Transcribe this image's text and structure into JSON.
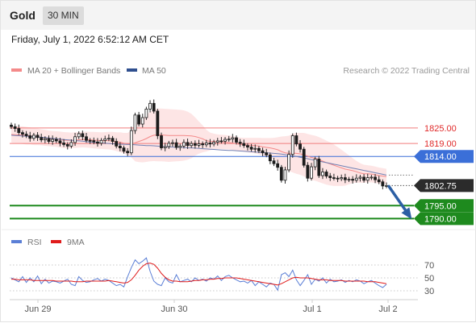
{
  "header": {
    "title": "Gold",
    "timeframe": "30 MIN"
  },
  "date": "Friday, July 1, 2022 6:52:12 AM CET",
  "legend": {
    "ma20": {
      "label": "MA 20 + Bollinger Bands",
      "color": "#f48a8a"
    },
    "ma50": {
      "label": "MA 50",
      "color": "#2f4f8f"
    },
    "credit": "Research © 2022 Trading Central"
  },
  "rsi_legend": {
    "rsi": {
      "label": "RSI",
      "color": "#5b7fd6"
    },
    "ma9": {
      "label": "9MA",
      "color": "#e01b1b"
    }
  },
  "chart_data": [
    {
      "type": "candlestick",
      "y_axis": "price",
      "ylim": [
        1787,
        1843
      ],
      "x_labels": [
        "Jun 29",
        "Jun 30",
        "Jul 1",
        "Jul 2"
      ],
      "current_price": "1802.75",
      "levels": [
        {
          "label": "1825.00",
          "value": 1825.0,
          "kind": "resistance",
          "color": "#f07c7c"
        },
        {
          "label": "1819.00",
          "value": 1819.0,
          "kind": "resistance",
          "color": "#f07c7c"
        },
        {
          "label": "1814.00",
          "value": 1814.0,
          "kind": "pivot",
          "color": "#3b6fd8"
        },
        {
          "label": "1795.00",
          "value": 1795.0,
          "kind": "support",
          "color": "#1e8a1e"
        },
        {
          "label": "1790.00",
          "value": 1790.0,
          "kind": "support",
          "color": "#1e8a1e"
        }
      ],
      "close_series": [
        1825.5,
        1824.8,
        1823.2,
        1822.6,
        1822.0,
        1821.0,
        1822.2,
        1821.3,
        1820.4,
        1820.9,
        1819.8,
        1820.6,
        1820.0,
        1819.2,
        1818.6,
        1818.0,
        1819.4,
        1821.6,
        1822.8,
        1821.6,
        1820.2,
        1820.1,
        1819.6,
        1819.1,
        1820.2,
        1820.8,
        1821.0,
        1819.8,
        1818.0,
        1817.3,
        1816.0,
        1815.4,
        1824.0,
        1830.0,
        1826.5,
        1829.0,
        1832.3,
        1834.5,
        1831.5,
        1822.0,
        1817.3,
        1817.8,
        1819.1,
        1819.3,
        1817.5,
        1818.0,
        1819.4,
        1818.2,
        1819.0,
        1818.3,
        1818.9,
        1818.5,
        1819.2,
        1818.8,
        1819.5,
        1820.0,
        1819.9,
        1820.6,
        1820.7,
        1821.2,
        1819.5,
        1819.0,
        1818.2,
        1817.6,
        1816.8,
        1817.1,
        1816.2,
        1815.4,
        1814.6,
        1812.3,
        1811.2,
        1809.8,
        1804.8,
        1808.8,
        1814.8,
        1822.0,
        1818.8,
        1816.8,
        1810.6,
        1805.6,
        1810.0,
        1813.0,
        1806.6,
        1808.0,
        1806.4,
        1805.8,
        1805.6,
        1805.4,
        1805.8,
        1805.0,
        1805.2,
        1804.8,
        1805.6,
        1806.0,
        1804.8,
        1805.8,
        1806.0,
        1805.0,
        1804.2,
        1802.6,
        1802.75
      ],
      "ma20_series": [
        1822.5,
        1822.4,
        1822.3,
        1822.2,
        1822.0,
        1821.9,
        1821.7,
        1821.6,
        1821.4,
        1821.2,
        1821.0,
        1820.8,
        1820.7,
        1820.5,
        1820.3,
        1820.2,
        1820.2,
        1820.3,
        1820.4,
        1820.5,
        1820.5,
        1820.4,
        1820.3,
        1820.2,
        1820.1,
        1820.1,
        1820.1,
        1820.0,
        1819.7,
        1819.5,
        1819.1,
        1818.8,
        1818.8,
        1819.3,
        1819.8,
        1820.3,
        1820.9,
        1821.7,
        1822.2,
        1822.3,
        1822.3,
        1822.2,
        1822.1,
        1822.1,
        1822.1,
        1822.1,
        1822.1,
        1822.0,
        1821.9,
        1821.7,
        1821.3,
        1820.8,
        1820.1,
        1819.8,
        1819.8,
        1819.7,
        1819.6,
        1819.5,
        1819.4,
        1819.2,
        1818.9,
        1818.7,
        1818.5,
        1818.4,
        1818.3,
        1818.2,
        1818.0,
        1817.7,
        1817.5,
        1817.3,
        1817.0,
        1816.6,
        1815.9,
        1815.4,
        1815.2,
        1815.3,
        1815.2,
        1815.0,
        1814.7,
        1814.1,
        1813.6,
        1813.3,
        1812.8,
        1812.2,
        1811.6,
        1811.1,
        1810.6,
        1810.1,
        1809.6,
        1809.1,
        1808.8,
        1808.5,
        1808.1,
        1807.6,
        1807.3,
        1807.3,
        1807.2,
        1806.9,
        1806.6,
        1806.4,
        1806.2
      ],
      "ma50_series": [
        1822.2,
        1822.1,
        1822.0,
        1821.9,
        1821.8,
        1821.7,
        1821.6,
        1821.5,
        1821.4,
        1821.3,
        1821.1,
        1821.0,
        1820.8,
        1820.7,
        1820.5,
        1820.4,
        1820.3,
        1820.1,
        1820.0,
        1819.9,
        1819.7,
        1819.5,
        1819.4,
        1819.3,
        1819.2,
        1819.1,
        1819.0,
        1818.9,
        1818.8,
        1818.7,
        1818.7,
        1818.6,
        1818.6,
        1818.5,
        1818.4,
        1818.3,
        1818.2,
        1818.2,
        1818.1,
        1818.0,
        1817.9,
        1817.8,
        1817.7,
        1817.6,
        1817.5,
        1817.5,
        1817.4,
        1817.3,
        1817.3,
        1817.2,
        1817.1,
        1817.0,
        1816.9,
        1816.8,
        1816.7,
        1816.6,
        1816.5,
        1816.4,
        1816.3,
        1816.3,
        1816.2,
        1816.1,
        1816.0,
        1815.9,
        1815.8,
        1815.7,
        1815.6,
        1815.5,
        1815.4,
        1815.3,
        1815.2,
        1815.1,
        1814.9,
        1814.7,
        1814.5,
        1814.3,
        1814.0,
        1813.7,
        1813.4,
        1813.1,
        1812.8,
        1812.5,
        1812.2,
        1811.9,
        1811.6,
        1811.3,
        1811.0,
        1810.7,
        1810.4,
        1810.1,
        1809.8,
        1809.5,
        1809.2,
        1808.9,
        1808.6,
        1808.3,
        1808.0,
        1807.7,
        1807.4,
        1807.1,
        1806.8
      ],
      "bollinger_width": [
        3.2,
        3.3,
        3.3,
        3.4,
        3.4,
        3.3,
        3.3,
        3.2,
        3.1,
        3.1,
        3.0,
        3.0,
        3.0,
        3.1,
        3.1,
        3.1,
        3.0,
        3.0,
        3.0,
        3.0,
        3.1,
        3.1,
        3.2,
        3.2,
        3.2,
        3.3,
        3.4,
        3.5,
        3.6,
        3.8,
        4.0,
        4.3,
        5.2,
        7.2,
        8.0,
        8.6,
        9.0,
        9.6,
        10.0,
        10.2,
        10.2,
        10.2,
        10.2,
        10.1,
        10.0,
        9.9,
        9.7,
        9.3,
        8.6,
        7.4,
        6.2,
        5.2,
        4.2,
        3.4,
        3.0,
        2.8,
        2.8,
        2.8,
        2.7,
        2.7,
        2.6,
        2.6,
        2.7,
        2.8,
        2.9,
        3.0,
        3.2,
        3.4,
        3.6,
        3.8,
        4.2,
        4.8,
        5.8,
        6.4,
        6.8,
        7.5,
        7.9,
        8.1,
        8.4,
        8.6,
        8.7,
        8.7,
        8.7,
        8.6,
        8.5,
        8.3,
        8.0,
        7.5,
        7.0,
        6.4,
        5.6,
        4.8,
        4.2,
        3.8,
        3.5,
        3.3,
        3.2,
        3.2,
        3.1,
        3.1,
        3.0
      ],
      "forecast": {
        "from": "1802.75",
        "to": "1790.00",
        "direction": "down"
      }
    },
    {
      "type": "line",
      "name": "RSI",
      "ylim": [
        20,
        85
      ],
      "y_ticks": [
        "70",
        "50",
        "30"
      ],
      "y_tick_values": [
        70,
        50,
        30
      ],
      "rsi_series": [
        50,
        47,
        44,
        52,
        43,
        50,
        44,
        53,
        41,
        48,
        42,
        45,
        44,
        42,
        45,
        48,
        40,
        38,
        52,
        46,
        43,
        44,
        47,
        49,
        45,
        48,
        46,
        42,
        38,
        40,
        36,
        52,
        66,
        78,
        72,
        76,
        81,
        60,
        45,
        40,
        38,
        50,
        44,
        42,
        55,
        44,
        46,
        48,
        44,
        50,
        46,
        48,
        45,
        50,
        48,
        53,
        46,
        52,
        54,
        50,
        47,
        44,
        45,
        42,
        46,
        38,
        44,
        40,
        36,
        42,
        40,
        31,
        55,
        58,
        52,
        62,
        47,
        38,
        46,
        55,
        40,
        48,
        45,
        50,
        42,
        48,
        44,
        45,
        47,
        43,
        46,
        44,
        47,
        45,
        41,
        44,
        46,
        42,
        38,
        35,
        40
      ],
      "ma9_series": [
        48,
        48,
        47,
        47,
        47,
        47,
        46,
        46,
        46,
        46,
        46,
        46,
        45,
        45,
        45,
        45,
        45,
        44,
        44,
        44,
        45,
        45,
        45,
        45,
        45,
        45,
        46,
        45,
        44,
        43,
        42,
        43,
        47,
        54,
        62,
        68,
        72,
        73,
        71,
        65,
        57,
        51,
        47,
        45,
        45,
        44,
        44,
        44,
        45,
        46,
        46,
        47,
        47,
        48,
        48,
        49,
        49,
        50,
        50,
        50,
        50,
        49,
        48,
        47,
        46,
        45,
        44,
        43,
        42,
        41,
        40,
        39,
        41,
        44,
        47,
        50,
        51,
        50,
        50,
        50,
        49,
        48,
        47,
        47,
        47,
        46,
        46,
        46,
        46,
        45,
        45,
        45,
        45,
        45,
        45,
        44,
        44,
        44,
        43,
        42,
        41
      ]
    }
  ]
}
